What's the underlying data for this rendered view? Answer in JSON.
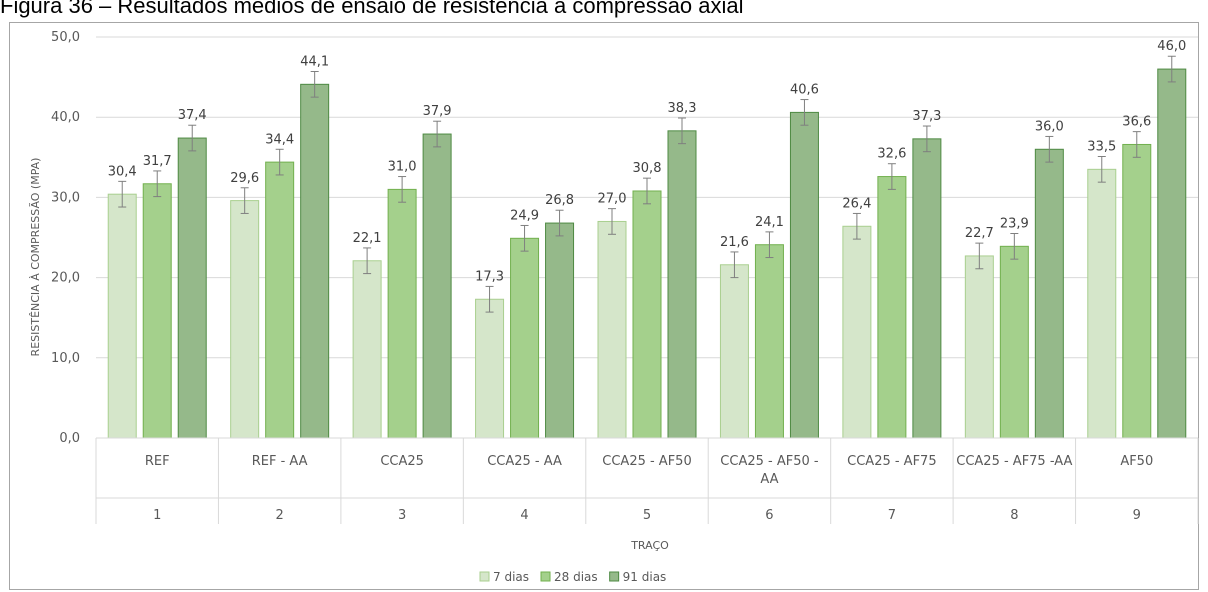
{
  "caption": "Figura 36 – Resultados médios de ensaio de resistência à compressão axial",
  "chart_data": {
    "type": "bar",
    "title": "",
    "xlabel": "TRAÇO",
    "ylabel": "RESISTÊNCIA À COMPRESSÃO (MPA)",
    "ylim": [
      0,
      50
    ],
    "yticks": [
      "0,0",
      "10,0",
      "20,0",
      "30,0",
      "40,0",
      "50,0"
    ],
    "grid": true,
    "legend_position": "bottom",
    "categories": [
      {
        "label": "REF",
        "number": "1"
      },
      {
        "label": "REF - AA",
        "number": "2"
      },
      {
        "label": "CCA25",
        "number": "3"
      },
      {
        "label": "CCA25 - AA",
        "number": "4"
      },
      {
        "label": "CCA25 - AF50",
        "number": "5"
      },
      {
        "label": "CCA25 - AF50 - AA",
        "number": "6"
      },
      {
        "label": "CCA25 - AF75",
        "number": "7"
      },
      {
        "label": "CCA25 - AF75 -AA",
        "number": "8"
      },
      {
        "label": "AF50",
        "number": "9"
      }
    ],
    "series": [
      {
        "name": "7 dias",
        "color": "#d5e6ca",
        "stroke": "#a9cf8f",
        "values": [
          30.4,
          29.6,
          22.1,
          17.3,
          27.0,
          21.6,
          26.4,
          22.7,
          33.5
        ],
        "labels": [
          "30,4",
          "29,6",
          "22,1",
          "17,3",
          "27,0",
          "21,6",
          "26,4",
          "22,7",
          "33,5"
        ]
      },
      {
        "name": "28 dias",
        "color": "#a4d08c",
        "stroke": "#72b04e",
        "values": [
          31.7,
          34.4,
          31.0,
          24.9,
          30.8,
          24.1,
          32.6,
          23.9,
          36.6
        ],
        "labels": [
          "31,7",
          "34,4",
          "31,0",
          "24,9",
          "30,8",
          "24,1",
          "32,6",
          "23,9",
          "36,6"
        ]
      },
      {
        "name": "91 dias",
        "color": "#95b98a",
        "stroke": "#4e8a43",
        "values": [
          37.4,
          44.1,
          37.9,
          26.8,
          38.3,
          40.6,
          37.3,
          36.0,
          46.0
        ],
        "labels": [
          "37,4",
          "44,1",
          "37,9",
          "26,8",
          "38,3",
          "40,6",
          "37,3",
          "36,0",
          "46,0"
        ]
      }
    ]
  }
}
